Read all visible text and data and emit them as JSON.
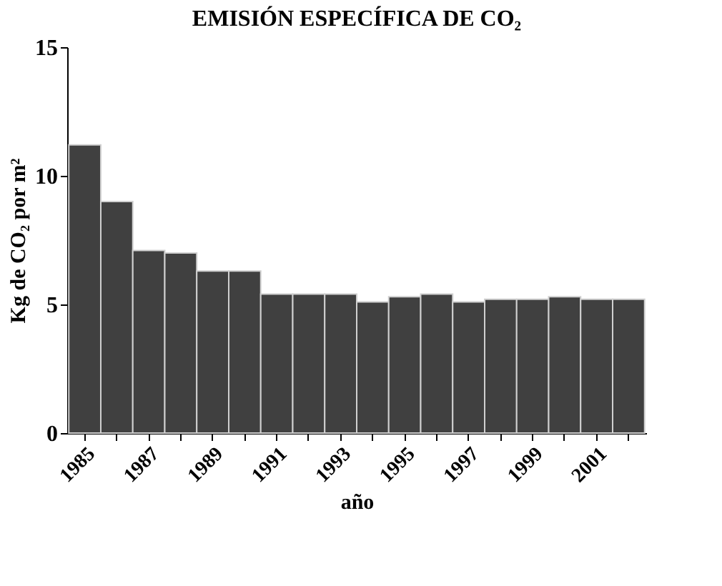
{
  "chart_data": {
    "type": "bar",
    "title": "EMISIÓN ESPECÍFICA DE  CO₂",
    "xlabel": "año",
    "ylabel": "Kg de CO₂ por m²",
    "categories": [
      "1985",
      null,
      "1987",
      null,
      "1989",
      null,
      "1991",
      null,
      "1993",
      null,
      "1995",
      null,
      "1997",
      null,
      "1999",
      null,
      "2001",
      null
    ],
    "values": [
      11.2,
      9.0,
      7.1,
      7.0,
      6.3,
      6.3,
      5.4,
      5.4,
      5.4,
      5.1,
      5.3,
      5.4,
      5.1,
      5.2,
      5.2,
      5.3,
      5.2,
      5.2
    ],
    "color": "#404040",
    "ylim": [
      0,
      15
    ],
    "yticks": [
      0,
      5,
      10,
      15
    ],
    "grid": false
  }
}
